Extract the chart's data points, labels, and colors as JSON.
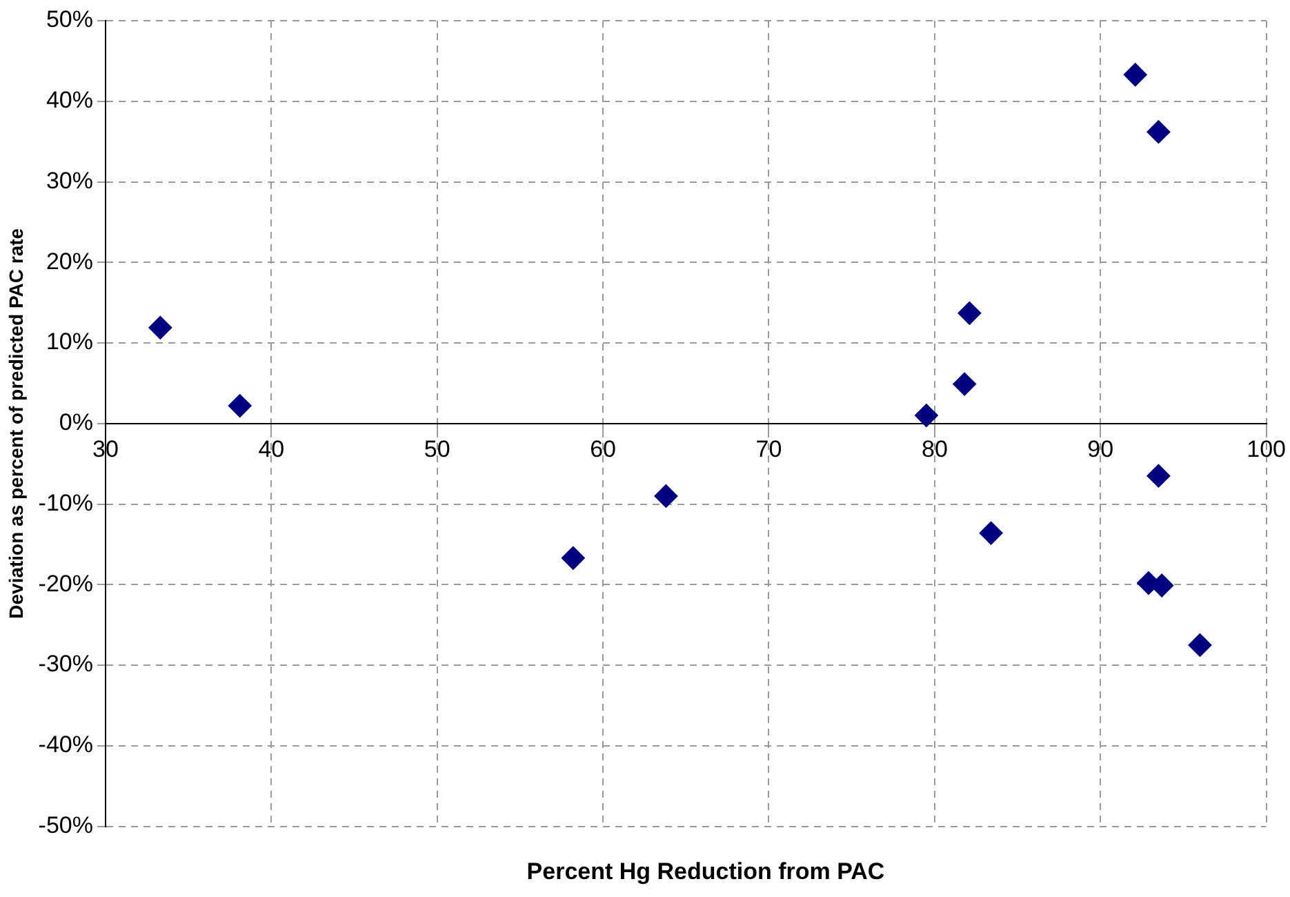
{
  "chart_data": {
    "type": "scatter",
    "xlabel": "Percent Hg Reduction from PAC",
    "ylabel": "Deviation as percent of predicted PAC rate",
    "x": [
      33.3,
      38.1,
      58.2,
      63.8,
      79.5,
      81.8,
      82.1,
      83.4,
      92.1,
      93.5,
      93.5,
      92.9,
      93.7,
      96.0
    ],
    "series": [
      {
        "color": "#000080",
        "values": [
          11.9,
          2.2,
          -16.7,
          -9.0,
          1.0,
          4.9,
          13.7,
          -13.6,
          43.3,
          36.2,
          -6.5,
          -19.8,
          -20.1,
          -27.5
        ]
      }
    ],
    "xlim": [
      30,
      100
    ],
    "xticks": [
      30,
      40,
      50,
      60,
      70,
      80,
      90,
      100
    ],
    "ylim": [
      -50,
      50
    ],
    "yticks": [
      {
        "value": -50,
        "label": "-50%"
      },
      {
        "value": -40,
        "label": "-40%"
      },
      {
        "value": -30,
        "label": "-30%"
      },
      {
        "value": -20,
        "label": "-20%"
      },
      {
        "value": -10,
        "label": "-10%"
      },
      {
        "value": 0,
        "label": "0%"
      },
      {
        "value": 10,
        "label": "10%"
      },
      {
        "value": 20,
        "label": "20%"
      },
      {
        "value": 30,
        "label": "30%"
      },
      {
        "value": 40,
        "label": "40%"
      },
      {
        "value": 50,
        "label": "50%"
      }
    ],
    "grid": true,
    "marker": "diamond",
    "legend": false
  }
}
